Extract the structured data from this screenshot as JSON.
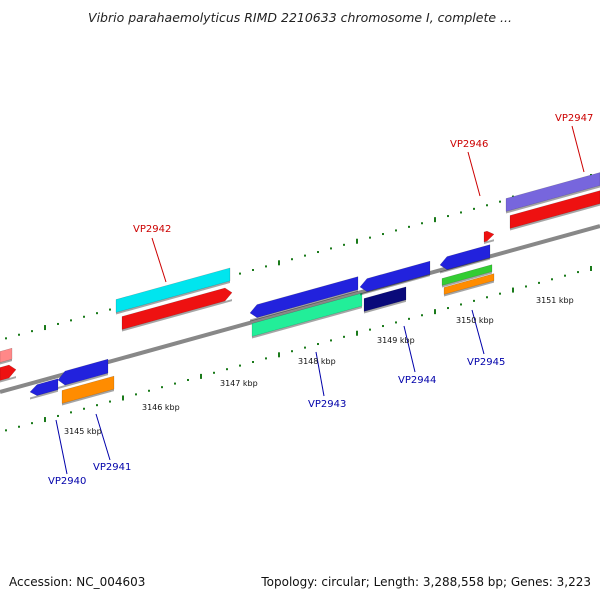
{
  "title": "Vibrio parahaemolyticus RIMD 2210633 chromosome I, complete ...",
  "footer": {
    "accession": "Accession: NC_004603",
    "summary": "Topology: circular; Length: 3,288,558 bp; Genes: 3,223"
  },
  "colors": {
    "backbone": "#888888",
    "ticks": "#1a7a1a",
    "label_forward": "#cc0000",
    "label_reverse": "#0000aa"
  },
  "scale_labels": [
    "3145 kbp",
    "3146 kbp",
    "3147 kbp",
    "3148 kbp",
    "3149 kbp",
    "3150 kbp",
    "3151 kbp"
  ],
  "gene_labels": [
    {
      "id": "VP2940",
      "strand": "reverse"
    },
    {
      "id": "VP2941",
      "strand": "reverse"
    },
    {
      "id": "VP2942",
      "strand": "forward"
    },
    {
      "id": "VP2943",
      "strand": "reverse"
    },
    {
      "id": "VP2944",
      "strand": "reverse"
    },
    {
      "id": "VP2945",
      "strand": "reverse"
    },
    {
      "id": "VP2946",
      "strand": "forward"
    },
    {
      "id": "VP2947",
      "strand": "forward"
    }
  ],
  "features": [
    {
      "name": "VP2940-gene",
      "color": "#2222dd"
    },
    {
      "name": "VP2941-gene",
      "color": "#2222dd"
    },
    {
      "name": "VP2941-cds",
      "color": "#ff8c00"
    },
    {
      "name": "VP2942-gene",
      "color": "#00e5ee"
    },
    {
      "name": "VP2942-cds",
      "color": "#ee1111"
    },
    {
      "name": "VP2943-gene",
      "color": "#2222dd"
    },
    {
      "name": "VP2943-cds",
      "color": "#22ee99"
    },
    {
      "name": "VP2944-gene",
      "color": "#2222dd"
    },
    {
      "name": "VP2944-cds",
      "color": "#0a0a7a"
    },
    {
      "name": "VP2945-gene",
      "color": "#2222dd"
    },
    {
      "name": "VP2945-cds-a",
      "color": "#33cc33"
    },
    {
      "name": "VP2945-cds-b",
      "color": "#ff8c00"
    },
    {
      "name": "VP2946-cds",
      "color": "#ee1111"
    },
    {
      "name": "VP2947-gene",
      "color": "#7766dd"
    },
    {
      "name": "VP2947-cds",
      "color": "#ee1111"
    },
    {
      "name": "left-gene",
      "color": "#ff8888"
    },
    {
      "name": "left-cds",
      "color": "#ee1111"
    }
  ]
}
